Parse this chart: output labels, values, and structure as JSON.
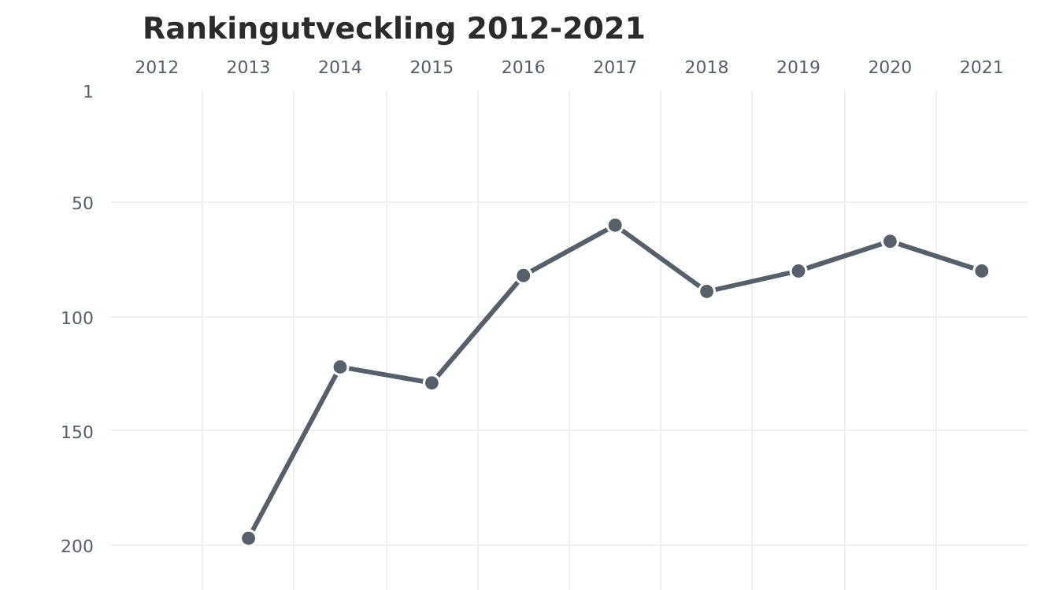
{
  "chart_data": {
    "type": "line",
    "title": "Rankingutveckling 2012-2021",
    "categories": [
      "2012",
      "2013",
      "2014",
      "2015",
      "2016",
      "2017",
      "2018",
      "2019",
      "2020",
      "2021"
    ],
    "series": [
      {
        "color": "#56606b",
        "values": [
          null,
          197,
          122,
          129,
          82,
          60,
          89,
          80,
          67,
          80
        ]
      }
    ],
    "ylim": [
      220,
      1
    ],
    "yticks": [
      1,
      50,
      100,
      150,
      200
    ],
    "grid": true,
    "marker": "circle",
    "line_style": "solid"
  }
}
